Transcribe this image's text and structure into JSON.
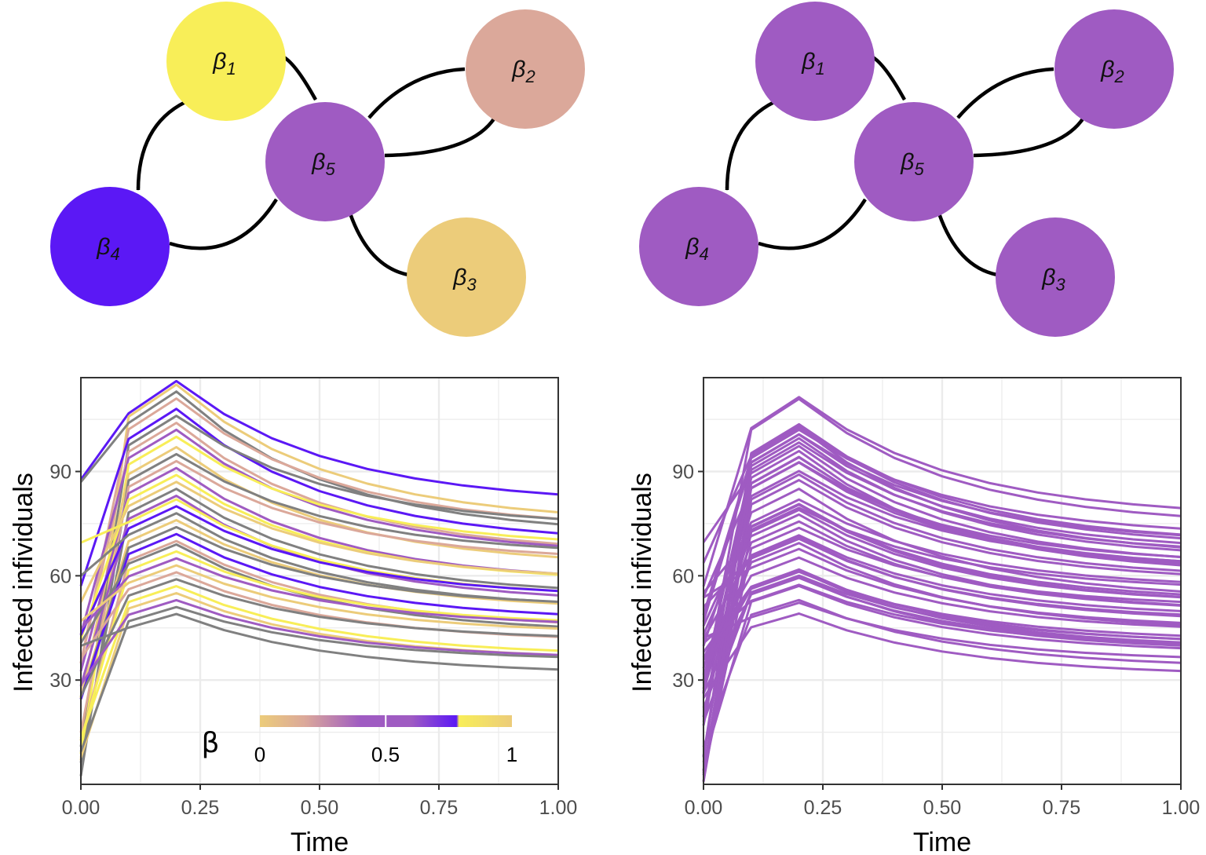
{
  "colors": {
    "edge": "#000000",
    "gray": "#808080",
    "panel_border": "#333333",
    "grid": "#ebebeb",
    "uniform_purple": "#9f5bc2"
  },
  "graphs": [
    {
      "panel": "top-left",
      "nodes": [
        {
          "id": "b1",
          "symbol": "β",
          "index": "1",
          "color": "#f8ee58"
        },
        {
          "id": "b2",
          "symbol": "β",
          "index": "2",
          "color": "#dba89a"
        },
        {
          "id": "b3",
          "symbol": "β",
          "index": "3",
          "color": "#eccc7a"
        },
        {
          "id": "b4",
          "symbol": "β",
          "index": "4",
          "color": "#5b18f5"
        },
        {
          "id": "b5",
          "symbol": "β",
          "index": "5",
          "color": "#9f5bc2"
        }
      ],
      "edges": [
        [
          "b1",
          "b5"
        ],
        [
          "b2",
          "b5"
        ],
        [
          "b5",
          "b2"
        ],
        [
          "b1",
          "b4"
        ],
        [
          "b4",
          "b5"
        ],
        [
          "b5",
          "b3"
        ]
      ]
    },
    {
      "panel": "top-right",
      "nodes": [
        {
          "id": "b1",
          "symbol": "β",
          "index": "1",
          "color": "#9f5bc2"
        },
        {
          "id": "b2",
          "symbol": "β",
          "index": "2",
          "color": "#9f5bc2"
        },
        {
          "id": "b3",
          "symbol": "β",
          "index": "3",
          "color": "#9f5bc2"
        },
        {
          "id": "b4",
          "symbol": "β",
          "index": "4",
          "color": "#9f5bc2"
        },
        {
          "id": "b5",
          "symbol": "β",
          "index": "5",
          "color": "#9f5bc2"
        }
      ],
      "edges": [
        [
          "b1",
          "b5"
        ],
        [
          "b2",
          "b5"
        ],
        [
          "b5",
          "b2"
        ],
        [
          "b1",
          "b4"
        ],
        [
          "b4",
          "b5"
        ],
        [
          "b5",
          "b3"
        ]
      ]
    }
  ],
  "chart_data": [
    {
      "type": "line",
      "panel": "bottom-left",
      "xlabel": "Time",
      "ylabel": "Infected infividuals",
      "xlim": [
        0,
        1
      ],
      "ylim": [
        0,
        117
      ],
      "xticks": [
        "0.00",
        "0.25",
        "0.50",
        "0.75",
        "1.00"
      ],
      "yticks": [
        "30",
        "60",
        "90"
      ],
      "x": [
        0,
        0.1,
        0.2,
        0.3,
        0.4,
        0.5,
        0.6,
        0.7,
        0.8,
        0.9,
        1.0
      ],
      "series_profiles": [
        {
          "name": "start",
          "values": [
            0,
            0.7,
            0.75
          ]
        },
        {
          "name": "end",
          "values": [
            0.38,
            0.67
          ]
        }
      ],
      "series_peaks": [
        116,
        115,
        113,
        111,
        108,
        106,
        104,
        102,
        100,
        97,
        95,
        93,
        91,
        89,
        87,
        85,
        83,
        82,
        80,
        78,
        76,
        74,
        72,
        70,
        69,
        67,
        65,
        63,
        61,
        59,
        57,
        55,
        53,
        51,
        49
      ],
      "series_colors": [
        "#5b18f5",
        "#eccc7a",
        "#808080",
        "#dba89a",
        "#5b18f5",
        "#808080",
        "#dba89a",
        "#9f5bc2",
        "#f8ee58",
        "#eccc7a",
        "#808080",
        "#dba89a",
        "#9f5bc2",
        "#f8ee58",
        "#eccc7a",
        "#808080",
        "#9f5bc2",
        "#f8ee58",
        "#5b18f5",
        "#808080",
        "#eccc7a",
        "#808080",
        "#5b18f5",
        "#dba89a",
        "#808080",
        "#f8ee58",
        "#9f5bc2",
        "#eccc7a",
        "#dba89a",
        "#808080",
        "#f8ee58",
        "#eccc7a",
        "#9f5bc2",
        "#808080",
        "#808080"
      ],
      "legend": {
        "title": "β",
        "placement": "bottom-center",
        "ticks": [
          "0",
          "0.5",
          "1"
        ],
        "gradient": [
          "#eccc7a",
          "#dba89a",
          "#9f5bc2",
          "#9f5bc2",
          "#5b18f5",
          "#f8ee58",
          "#eccc7a"
        ]
      }
    },
    {
      "type": "line",
      "panel": "bottom-right",
      "xlabel": "Time",
      "ylabel": "Infected infividuals",
      "xlim": [
        0,
        1
      ],
      "ylim": [
        0,
        117
      ],
      "xticks": [
        "0.00",
        "0.25",
        "0.50",
        "0.75",
        "1.00"
      ],
      "yticks": [
        "30",
        "60",
        "90"
      ],
      "x": [
        0,
        0.1,
        0.2,
        0.3,
        0.4,
        0.5,
        0.6,
        0.7,
        0.8,
        0.9,
        1.0
      ],
      "series_color": "#9f5bc2"
    }
  ]
}
